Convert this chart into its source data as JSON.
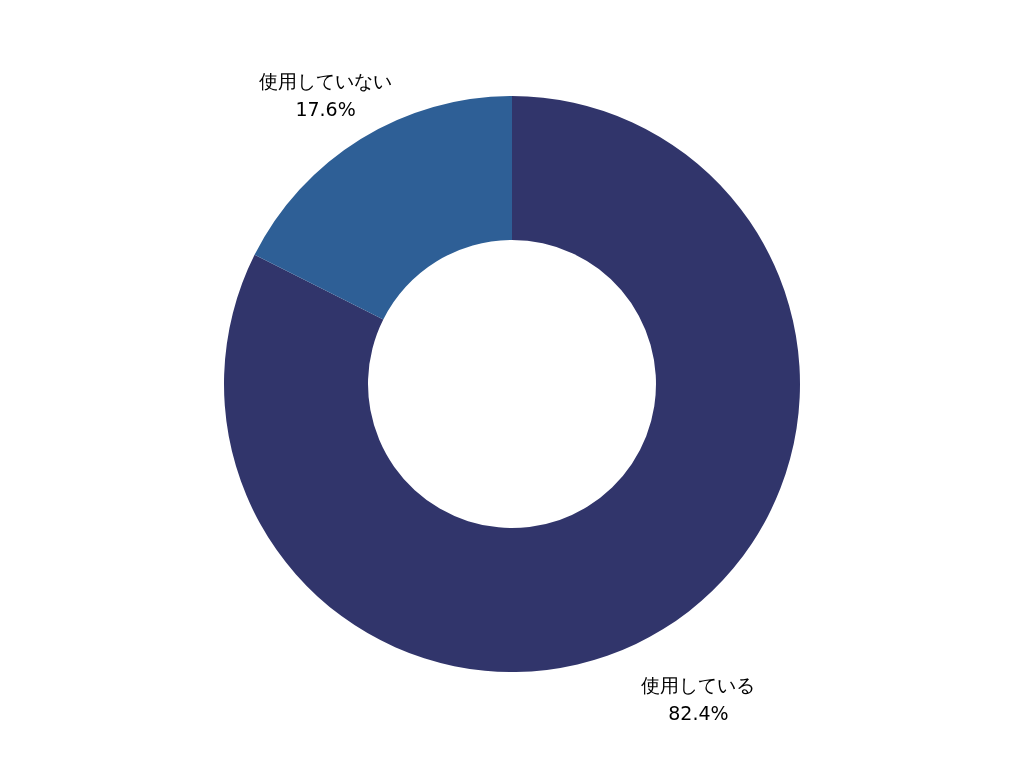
{
  "chart_data": {
    "type": "donut",
    "categories": [
      "使用している",
      "使用していない"
    ],
    "values": [
      82.4,
      17.6
    ],
    "colors": [
      "#31356b",
      "#2e5f96"
    ],
    "value_labels": [
      "82.4%",
      "17.6%"
    ]
  }
}
